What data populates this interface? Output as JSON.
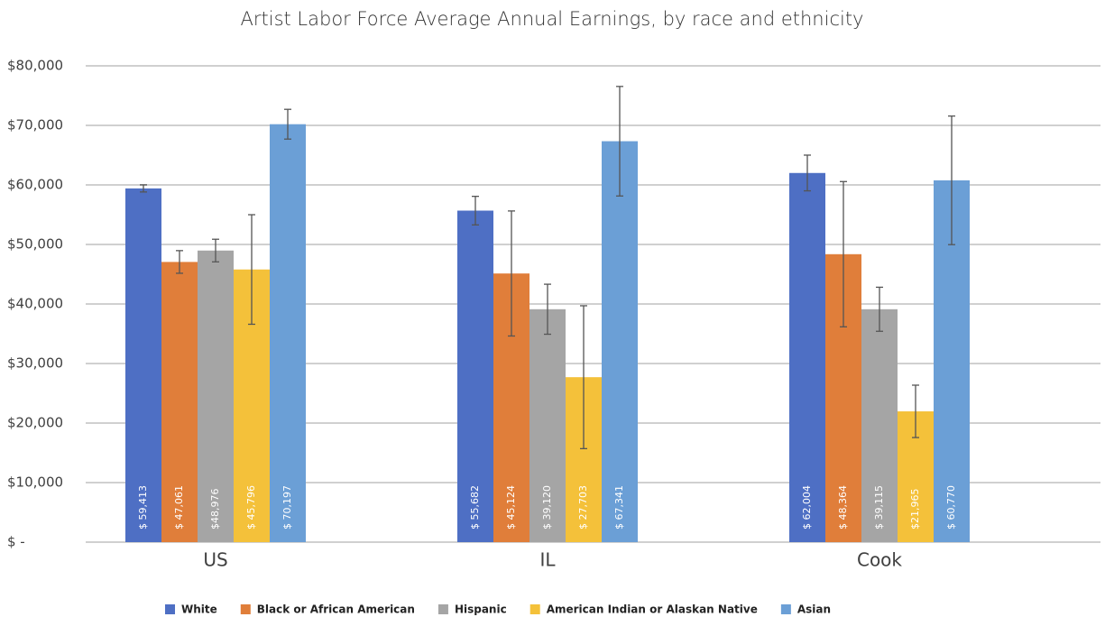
{
  "chart_data": {
    "type": "bar",
    "title": "Artist Labor Force Average Annual Earnings, by race and ethnicity",
    "categories": [
      "US",
      "IL",
      "Cook"
    ],
    "series": [
      {
        "name": "White",
        "color": "#4e6fc4",
        "values": [
          59413,
          55682,
          62004
        ],
        "value_labels": [
          "$ 59,413",
          "$ 55,682",
          "$ 62,004"
        ],
        "errors": [
          600,
          2400,
          3000
        ]
      },
      {
        "name": "Black or African American",
        "color": "#e07e3a",
        "values": [
          47061,
          45124,
          48364
        ],
        "value_labels": [
          "$ 47,061",
          "$ 45,124",
          "$ 48,364"
        ],
        "errors": [
          1900,
          10500,
          12200
        ]
      },
      {
        "name": "Hispanic",
        "color": "#a5a5a5",
        "values": [
          48976,
          39120,
          39115
        ],
        "value_labels": [
          "$48,976",
          "$ 39,120",
          "$ 39,115"
        ],
        "errors": [
          1900,
          4200,
          3700
        ]
      },
      {
        "name": "American Indian or Alaskan Native",
        "color": "#f4c13a",
        "values": [
          45796,
          27703,
          21965
        ],
        "value_labels": [
          "$ 45,796",
          "$ 27,703",
          "$21,965"
        ],
        "errors": [
          9200,
          12000,
          4400
        ]
      },
      {
        "name": "Asian",
        "color": "#6b9fd6",
        "values": [
          70197,
          67341,
          60770
        ],
        "value_labels": [
          "$ 70,197",
          "$ 67,341",
          "$ 60,770"
        ],
        "errors": [
          2500,
          9200,
          10800
        ]
      }
    ],
    "ylim": [
      0,
      80000
    ],
    "yticks": [
      {
        "value": 0,
        "label": "$ -"
      },
      {
        "value": 10000,
        "label": "$10,000"
      },
      {
        "value": 20000,
        "label": "$20,000"
      },
      {
        "value": 30000,
        "label": "$30,000"
      },
      {
        "value": 40000,
        "label": "$40,000"
      },
      {
        "value": 50000,
        "label": "$50,000"
      },
      {
        "value": 60000,
        "label": "$60,000"
      },
      {
        "value": 70000,
        "label": "$70,000"
      },
      {
        "value": 80000,
        "label": "$80,000"
      }
    ],
    "grid": true,
    "legend": "bottom"
  }
}
